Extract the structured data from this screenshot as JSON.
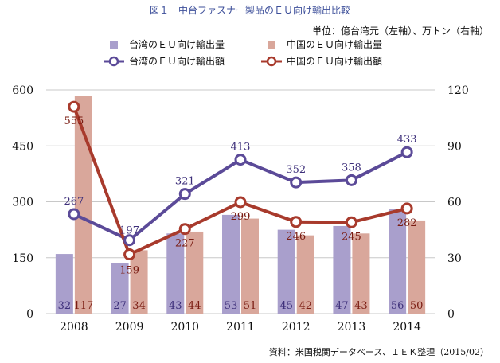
{
  "title": "図１　中台ファスナー製品のＥＵ向け輸出比較",
  "unit_note": "単位：億台湾元（左軸）、万トン（右軸）",
  "source_note": "資料：米国税関データベース、ＩＥＫ整理（2015/02）",
  "colors": {
    "taiwan_bar": "#a99fcc",
    "china_bar": "#d9a79b",
    "taiwan_line": "#5b4a98",
    "china_line": "#a83a2c",
    "grid": "#c8c8c8"
  },
  "chart_data": {
    "type": "bar",
    "categories": [
      "2008",
      "2009",
      "2010",
      "2011",
      "2012",
      "2013",
      "2014"
    ],
    "y_left": {
      "ylim": [
        0,
        600
      ],
      "ticks": [
        0,
        150,
        300,
        450,
        600
      ]
    },
    "y_right": {
      "ylim": [
        0,
        120
      ],
      "ticks": [
        0,
        30,
        60,
        90,
        120
      ]
    },
    "series": [
      {
        "name": "台湾のＥＵ向け輸出量",
        "kind": "bar",
        "axis": "right",
        "values": [
          32,
          27,
          43,
          53,
          45,
          47,
          56
        ]
      },
      {
        "name": "中国のＥＵ向け輸出量",
        "kind": "bar",
        "axis": "right",
        "values": [
          117,
          34,
          44,
          51,
          42,
          43,
          50
        ]
      },
      {
        "name": "台湾のＥＵ向け輸出額",
        "kind": "line",
        "axis": "left",
        "values": [
          267,
          197,
          321,
          413,
          352,
          358,
          433
        ]
      },
      {
        "name": "中国のＥＵ向け輸出額",
        "kind": "line",
        "axis": "left",
        "values": [
          555,
          159,
          227,
          299,
          246,
          245,
          282
        ]
      }
    ],
    "grid": true,
    "legend_position": "top"
  }
}
